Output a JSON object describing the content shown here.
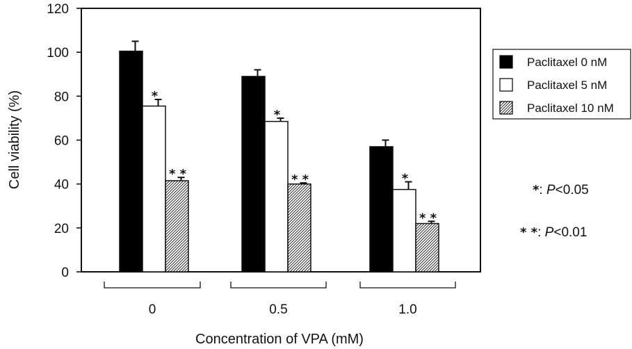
{
  "chart_data": {
    "type": "bar",
    "title": "",
    "xlabel": "Concentration of VPA (mM)",
    "ylabel": "Cell viability (%)",
    "ylim": [
      0,
      120
    ],
    "yticks": [
      0,
      20,
      40,
      60,
      80,
      100,
      120
    ],
    "categories": [
      "0",
      "0.5",
      "1.0"
    ],
    "grid": false,
    "legend_position": "right",
    "series": [
      {
        "name": "Paclitaxel 0 nM",
        "fill": "solid",
        "color": "#000000",
        "values": [
          100.5,
          89,
          57
        ],
        "errors": [
          4.5,
          3,
          3
        ],
        "markers": [
          "",
          "",
          ""
        ]
      },
      {
        "name": "Paclitaxel 5 nM",
        "fill": "none",
        "color": "#ffffff",
        "values": [
          75.5,
          68.5,
          37.5
        ],
        "errors": [
          3,
          1.5,
          3.5
        ],
        "markers": [
          "*",
          "*",
          "*"
        ]
      },
      {
        "name": "Paclitaxel 10 nM",
        "fill": "hatched",
        "color": "#ffffff",
        "values": [
          41.5,
          40,
          22
        ],
        "errors": [
          1.5,
          0.5,
          1
        ],
        "markers": [
          "* *",
          "* *",
          "* *"
        ]
      }
    ],
    "significance": [
      {
        "marker": "*",
        "colon": ":",
        "label": "P",
        "threshold": "<0.05"
      },
      {
        "marker": "* *",
        "colon": ":",
        "label": "P",
        "threshold": "<0.01"
      }
    ]
  }
}
